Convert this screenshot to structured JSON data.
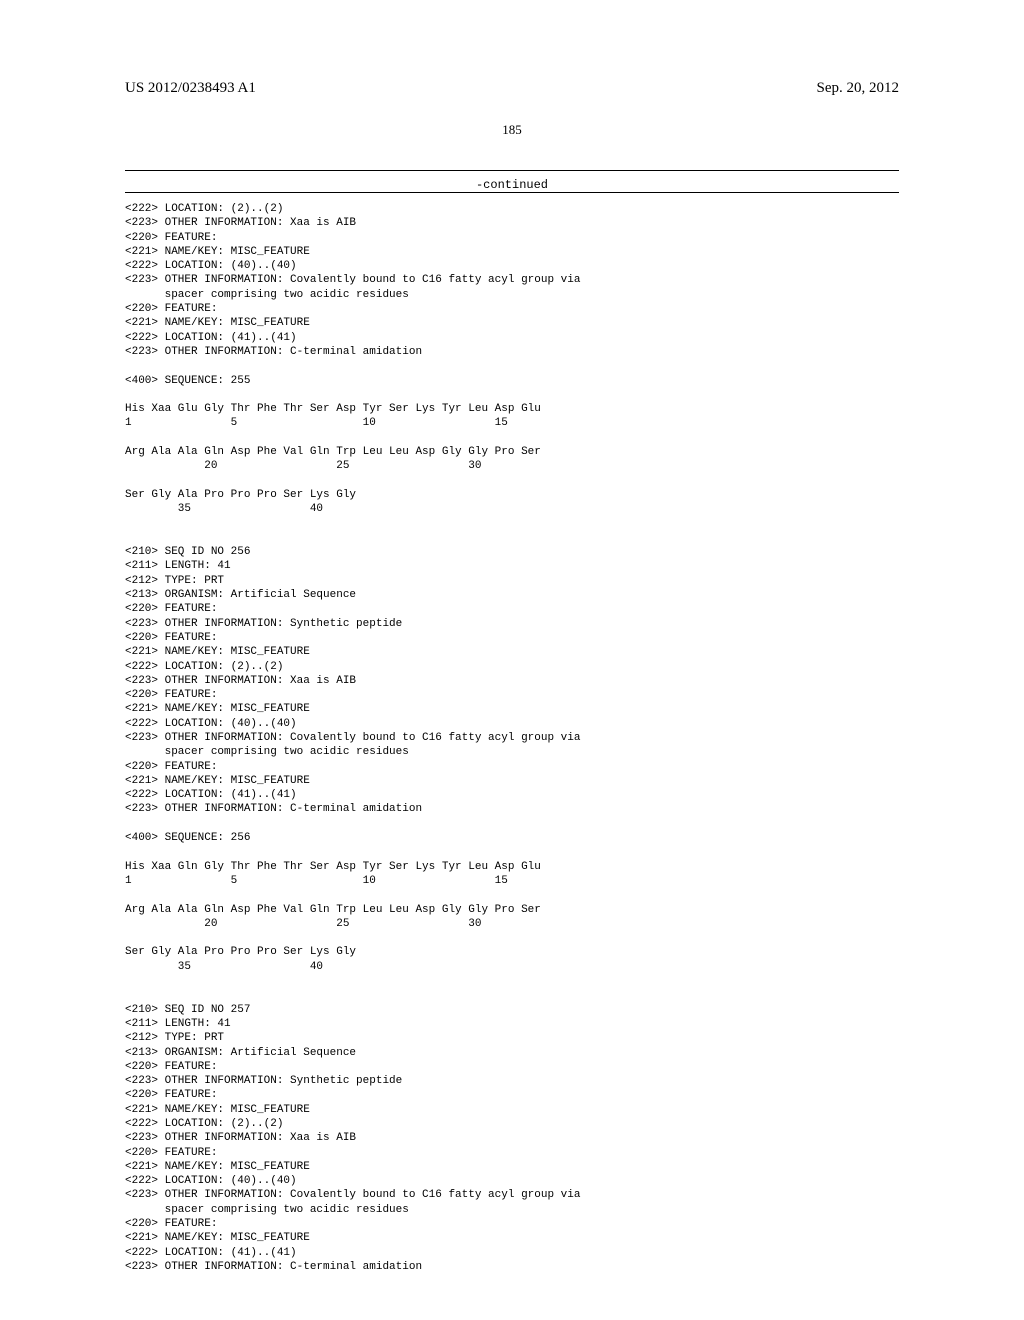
{
  "header": {
    "publication_number": "US 2012/0238493 A1",
    "publication_date": "Sep. 20, 2012"
  },
  "page_number": "185",
  "continued_label": "-continued",
  "sequences": {
    "block1": {
      "features": [
        "<222> LOCATION: (2)..(2)",
        "<223> OTHER INFORMATION: Xaa is AIB",
        "<220> FEATURE:",
        "<221> NAME/KEY: MISC_FEATURE",
        "<222> LOCATION: (40)..(40)",
        "<223> OTHER INFORMATION: Covalently bound to C16 fatty acyl group via",
        "      spacer comprising two acidic residues",
        "<220> FEATURE:",
        "<221> NAME/KEY: MISC_FEATURE",
        "<222> LOCATION: (41)..(41)",
        "<223> OTHER INFORMATION: C-terminal amidation"
      ],
      "seq_header": "<400> SEQUENCE: 255",
      "seq_lines": [
        "His Xaa Glu Gly Thr Phe Thr Ser Asp Tyr Ser Lys Tyr Leu Asp Glu",
        "1               5                   10                  15",
        "",
        "Arg Ala Ala Gln Asp Phe Val Gln Trp Leu Leu Asp Gly Gly Pro Ser",
        "            20                  25                  30",
        "",
        "Ser Gly Ala Pro Pro Pro Ser Lys Gly",
        "        35                  40"
      ]
    },
    "block2": {
      "header": [
        "<210> SEQ ID NO 256",
        "<211> LENGTH: 41",
        "<212> TYPE: PRT",
        "<213> ORGANISM: Artificial Sequence",
        "<220> FEATURE:",
        "<223> OTHER INFORMATION: Synthetic peptide",
        "<220> FEATURE:",
        "<221> NAME/KEY: MISC_FEATURE",
        "<222> LOCATION: (2)..(2)",
        "<223> OTHER INFORMATION: Xaa is AIB",
        "<220> FEATURE:",
        "<221> NAME/KEY: MISC_FEATURE",
        "<222> LOCATION: (40)..(40)",
        "<223> OTHER INFORMATION: Covalently bound to C16 fatty acyl group via",
        "      spacer comprising two acidic residues",
        "<220> FEATURE:",
        "<221> NAME/KEY: MISC_FEATURE",
        "<222> LOCATION: (41)..(41)",
        "<223> OTHER INFORMATION: C-terminal amidation"
      ],
      "seq_header": "<400> SEQUENCE: 256",
      "seq_lines": [
        "His Xaa Gln Gly Thr Phe Thr Ser Asp Tyr Ser Lys Tyr Leu Asp Glu",
        "1               5                   10                  15",
        "",
        "Arg Ala Ala Gln Asp Phe Val Gln Trp Leu Leu Asp Gly Gly Pro Ser",
        "            20                  25                  30",
        "",
        "Ser Gly Ala Pro Pro Pro Ser Lys Gly",
        "        35                  40"
      ]
    },
    "block3": {
      "header": [
        "<210> SEQ ID NO 257",
        "<211> LENGTH: 41",
        "<212> TYPE: PRT",
        "<213> ORGANISM: Artificial Sequence",
        "<220> FEATURE:",
        "<223> OTHER INFORMATION: Synthetic peptide",
        "<220> FEATURE:",
        "<221> NAME/KEY: MISC_FEATURE",
        "<222> LOCATION: (2)..(2)",
        "<223> OTHER INFORMATION: Xaa is AIB",
        "<220> FEATURE:",
        "<221> NAME/KEY: MISC_FEATURE",
        "<222> LOCATION: (40)..(40)",
        "<223> OTHER INFORMATION: Covalently bound to C16 fatty acyl group via",
        "      spacer comprising two acidic residues",
        "<220> FEATURE:",
        "<221> NAME/KEY: MISC_FEATURE",
        "<222> LOCATION: (41)..(41)",
        "<223> OTHER INFORMATION: C-terminal amidation"
      ]
    }
  }
}
